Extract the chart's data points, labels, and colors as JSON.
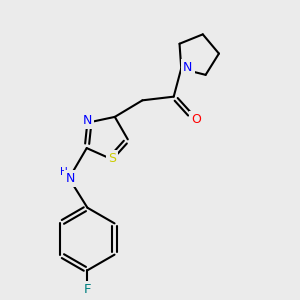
{
  "background_color": "#ebebeb",
  "bond_color": "#000000",
  "atom_colors": {
    "N": "#0000ff",
    "O": "#ff0000",
    "S": "#cccc00",
    "F": "#008080",
    "C": "#000000"
  },
  "font_size": 8.5,
  "fig_size": [
    3.0,
    3.0
  ],
  "dpi": 100
}
